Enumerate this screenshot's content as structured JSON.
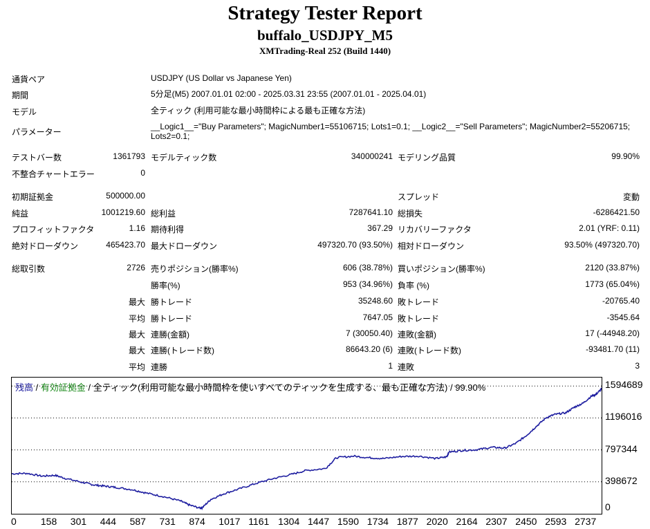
{
  "report": {
    "title": "Strategy Tester Report",
    "subtitle": "buffalo_USDJPY_M5",
    "server": "XMTrading-Real 252 (Build 1440)"
  },
  "info": [
    {
      "label": "通貨ペア",
      "value": "USDJPY (US Dollar vs Japanese Yen)"
    },
    {
      "label": "期間",
      "value": "5分足(M5) 2007.01.01 02:00 - 2025.03.31 23:55 (2007.01.01 - 2025.04.01)"
    },
    {
      "label": "モデル",
      "value": "全ティック (利用可能な最小時間枠による最も正確な方法)"
    },
    {
      "label": "パラメーター",
      "value": "__Logic1__=\"Buy Parameters\"; MagicNumber1=55106715; Lots1=0.1; __Logic2__=\"Sell Parameters\"; MagicNumber2=55206715; Lots2=0.1;"
    }
  ],
  "stats": {
    "test_bars_label": "テストバー数",
    "test_bars": "1361793",
    "model_ticks_label": "モデルティック数",
    "model_ticks": "340000241",
    "modeling_quality_label": "モデリング品質",
    "modeling_quality": "99.90%",
    "mismatch_label": "不整合チャートエラー",
    "mismatch": "0",
    "initial_deposit_label": "初期証拠金",
    "initial_deposit": "500000.00",
    "spread_label": "スプレッド",
    "spread": "変動",
    "net_profit_label": "純益",
    "net_profit": "1001219.60",
    "gross_profit_label": "総利益",
    "gross_profit": "7287641.10",
    "gross_loss_label": "総損失",
    "gross_loss": "-6286421.50",
    "profit_factor_label": "プロフィットファクタ",
    "profit_factor": "1.16",
    "expected_payoff_label": "期待利得",
    "expected_payoff": "367.29",
    "recovery_factor_label": "リカバリーファクタ",
    "recovery_factor": "2.01 (YRF: 0.11)",
    "abs_dd_label": "絶対ドローダウン",
    "abs_dd": "465423.70",
    "max_dd_label": "最大ドローダウン",
    "max_dd": "497320.70 (93.50%)",
    "rel_dd_label": "相対ドローダウン",
    "rel_dd": "93.50% (497320.70)",
    "total_trades_label": "総取引数",
    "total_trades": "2726",
    "short_label": "売りポジション(勝率%)",
    "short": "606 (38.78%)",
    "long_label": "買いポジション(勝率%)",
    "long": "2120 (33.87%)",
    "win_rate_label": "勝率(%)",
    "win_rate": "953 (34.96%)",
    "loss_rate_label": "負率 (%)",
    "loss_rate": "1773 (65.04%)",
    "max_label": "最大",
    "avg_label": "平均",
    "profit_trade_label": "勝トレード",
    "largest_profit": "35248.60",
    "loss_trade_label": "敗トレード",
    "largest_loss": "-20765.40",
    "avg_profit": "7647.05",
    "avg_loss": "-3545.64",
    "consec_wins_amt_label": "連勝(金額)",
    "consec_wins_amt": "7 (30050.40)",
    "consec_losses_amt_label": "連敗(金額)",
    "consec_losses_amt": "17 (-44948.20)",
    "consec_wins_cnt_label": "連勝(トレード数)",
    "consec_wins_cnt": "86643.20 (6)",
    "consec_losses_cnt_label": "連敗(トレード数)",
    "consec_losses_cnt": "-93481.70 (11)",
    "avg_wins_label": "連勝",
    "avg_wins": "1",
    "avg_losses_label": "連敗",
    "avg_losses": "3"
  },
  "chart_legend": {
    "balance": "残高",
    "sep1": " / ",
    "equity": "有効証拠金",
    "sep2": " / ",
    "model": "全ティック(利用可能な最小時間枠を使いすべてのティックを生成する、最も正確な方法)",
    "sep3": " / ",
    "quality": "99.90%",
    "balance_color": "#1e1ea0",
    "equity_color": "#1a8a1a"
  },
  "chart_data": {
    "type": "line",
    "x_ticks": [
      "0",
      "158",
      "301",
      "444",
      "587",
      "731",
      "874",
      "1017",
      "1161",
      "1304",
      "1447",
      "1590",
      "1734",
      "1877",
      "2020",
      "2164",
      "2307",
      "2450",
      "2593",
      "2737"
    ],
    "y_ticks": [
      "1594689",
      "1196016",
      "797344",
      "398672",
      "0"
    ],
    "ylim": [
      0,
      1700000
    ],
    "xlim": [
      0,
      2726
    ],
    "series": [
      {
        "values": [
          [
            0,
            500000
          ],
          [
            70,
            505000
          ],
          [
            140,
            470000
          ],
          [
            200,
            480000
          ],
          [
            250,
            440000
          ],
          [
            330,
            390000
          ],
          [
            380,
            360000
          ],
          [
            430,
            345000
          ],
          [
            480,
            330000
          ],
          [
            560,
            300000
          ],
          [
            620,
            260000
          ],
          [
            700,
            215000
          ],
          [
            780,
            160000
          ],
          [
            820,
            110000
          ],
          [
            870,
            70000
          ],
          [
            880,
            75000
          ],
          [
            920,
            180000
          ],
          [
            980,
            250000
          ],
          [
            1050,
            310000
          ],
          [
            1130,
            380000
          ],
          [
            1210,
            440000
          ],
          [
            1290,
            490000
          ],
          [
            1360,
            540000
          ],
          [
            1450,
            565000
          ],
          [
            1500,
            700000
          ],
          [
            1580,
            720000
          ],
          [
            1650,
            700000
          ],
          [
            1720,
            690000
          ],
          [
            1800,
            715000
          ],
          [
            1880,
            720000
          ],
          [
            1960,
            690000
          ],
          [
            2010,
            710000
          ],
          [
            2020,
            770000
          ],
          [
            2080,
            790000
          ],
          [
            2150,
            800000
          ],
          [
            2220,
            830000
          ],
          [
            2280,
            820000
          ],
          [
            2330,
            880000
          ],
          [
            2380,
            980000
          ],
          [
            2420,
            1080000
          ],
          [
            2470,
            1200000
          ],
          [
            2510,
            1240000
          ],
          [
            2560,
            1260000
          ],
          [
            2600,
            1330000
          ],
          [
            2640,
            1380000
          ],
          [
            2680,
            1470000
          ],
          [
            2700,
            1490000
          ],
          [
            2726,
            1560000
          ]
        ]
      }
    ]
  }
}
